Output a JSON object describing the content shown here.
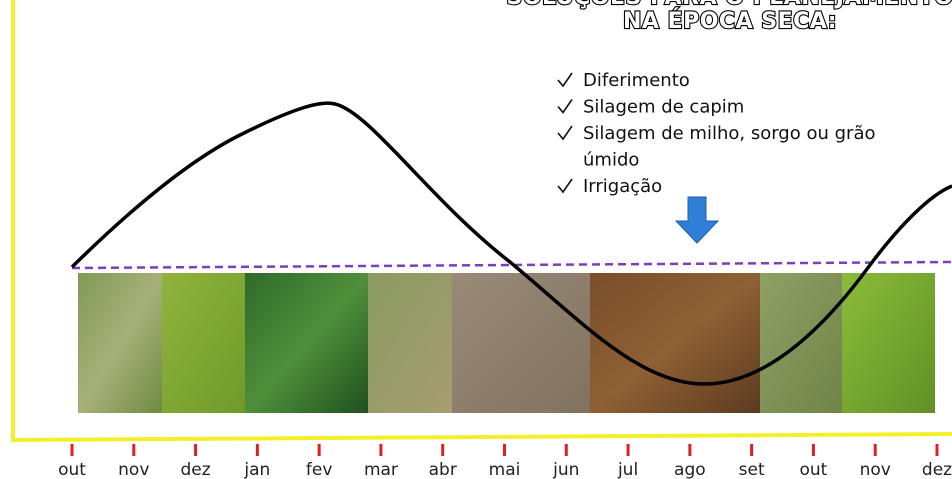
{
  "header": {
    "title_lines": [
      "SOLUÇÕES PARA O PLANEJAMENTO",
      "NA ÉPOCA SECA:"
    ]
  },
  "solutions": [
    {
      "lines": [
        "Diferimento"
      ]
    },
    {
      "lines": [
        "Silagem de capim"
      ]
    },
    {
      "lines": [
        "Silagem de milho, sorgo ou grão",
        "úmido"
      ]
    },
    {
      "lines": [
        "Irrigação"
      ]
    }
  ],
  "months": [
    "out",
    "nov",
    "dez",
    "jan",
    "fev",
    "mar",
    "abr",
    "mai",
    "jun",
    "jul",
    "ago",
    "set",
    "out",
    "nov",
    "dez"
  ]
}
